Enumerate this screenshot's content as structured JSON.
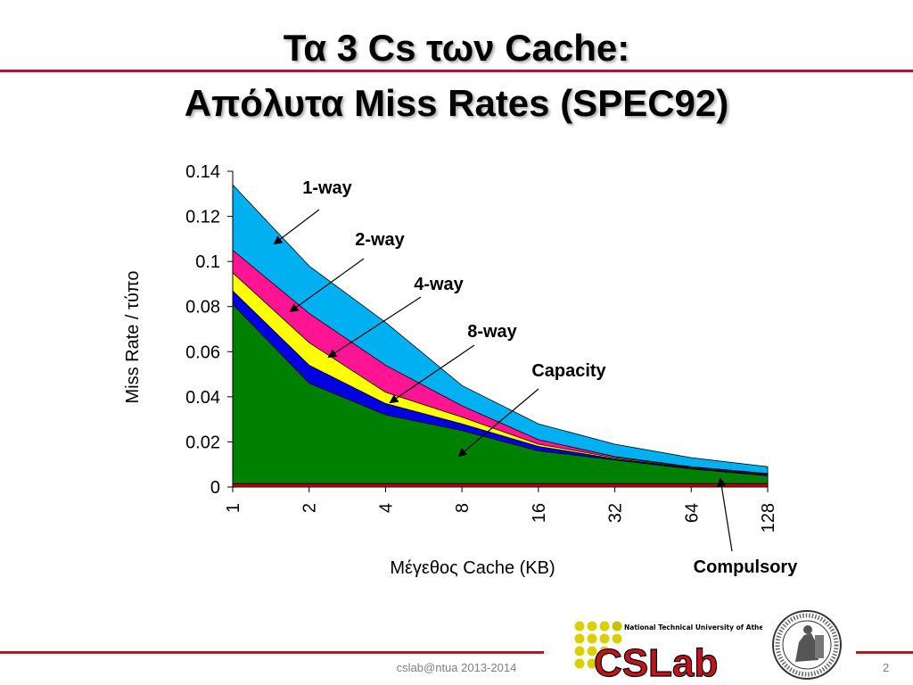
{
  "slide": {
    "title_line1": "Τα 3 Cs των Cache:",
    "title_line2": "Απόλυτα Miss Rates (SPEC92)",
    "footer": "cslab@ntua  2013-2014",
    "page_number": "2",
    "logo": {
      "main": "CSLab",
      "tagline": "National Technical University of Athens"
    }
  },
  "chart_data": {
    "type": "area",
    "categories": [
      "1",
      "2",
      "4",
      "8",
      "16",
      "32",
      "64",
      "128"
    ],
    "xlabel": "Μέγεθος Cache (KB)",
    "ylabel": "Miss Rate / τύπο",
    "ylim": [
      0,
      0.14
    ],
    "yticks": [
      "0",
      "0.02",
      "0.04",
      "0.06",
      "0.08",
      "0.1",
      "0.12",
      "0.14"
    ],
    "series": [
      {
        "name": "Compulsory",
        "color": "#c00000",
        "values": [
          0.0015,
          0.0015,
          0.0015,
          0.0015,
          0.0015,
          0.0015,
          0.0015,
          0.0015
        ]
      },
      {
        "name": "Capacity",
        "color": "#008000",
        "values": [
          0.081,
          0.046,
          0.032,
          0.025,
          0.016,
          0.012,
          0.008,
          0.005
        ]
      },
      {
        "name": "8-way",
        "color": "#0000e0",
        "values": [
          0.087,
          0.054,
          0.037,
          0.028,
          0.018,
          0.0125,
          0.0085,
          0.0055
        ]
      },
      {
        "name": "4-way",
        "color": "#ffff00",
        "values": [
          0.095,
          0.064,
          0.042,
          0.031,
          0.019,
          0.013,
          0.0088,
          0.0058
        ]
      },
      {
        "name": "2-way",
        "color": "#ff1493",
        "values": [
          0.105,
          0.077,
          0.054,
          0.036,
          0.021,
          0.0135,
          0.009,
          0.006
        ]
      },
      {
        "name": "1-way",
        "color": "#00b0f0",
        "values": [
          0.134,
          0.098,
          0.073,
          0.045,
          0.028,
          0.019,
          0.013,
          0.009
        ]
      }
    ],
    "annotations": [
      {
        "label": "1-way"
      },
      {
        "label": "2-way"
      },
      {
        "label": "4-way"
      },
      {
        "label": "8-way"
      },
      {
        "label": "Capacity"
      },
      {
        "label": "Compulsory"
      }
    ]
  }
}
